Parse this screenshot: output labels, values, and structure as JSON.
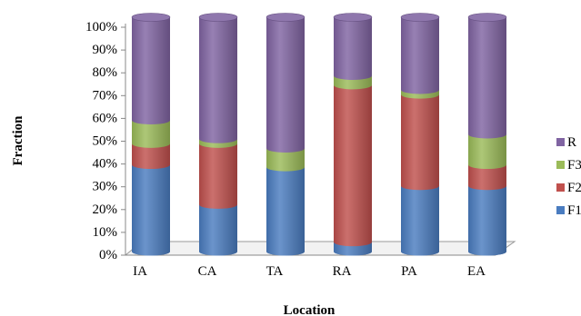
{
  "chart_data": {
    "type": "bar",
    "stacked": true,
    "style": "3d-cylinder",
    "xlabel": "Location",
    "ylabel": "Fraction",
    "ylim": [
      0,
      100
    ],
    "yticks": [
      "0%",
      "10%",
      "20%",
      "30%",
      "40%",
      "50%",
      "60%",
      "70%",
      "80%",
      "90%",
      "100%"
    ],
    "categories": [
      "IA",
      "CA",
      "TA",
      "RA",
      "PA",
      "EA"
    ],
    "series": [
      {
        "name": "F1",
        "color": "#4a7cc0",
        "values": [
          37,
          20,
          36,
          4,
          28,
          28
        ]
      },
      {
        "name": "F2",
        "color": "#c0504d",
        "values": [
          9,
          26,
          0,
          67,
          39,
          9
        ]
      },
      {
        "name": "F3",
        "color": "#9bbb59",
        "values": [
          10,
          2,
          8,
          4,
          2,
          13
        ]
      },
      {
        "name": "R",
        "color": "#8064a2",
        "values": [
          44,
          52,
          56,
          25,
          31,
          50
        ]
      }
    ],
    "legend": {
      "position": "right",
      "order": [
        "R",
        "F3",
        "F2",
        "F1"
      ]
    },
    "grid": false
  }
}
